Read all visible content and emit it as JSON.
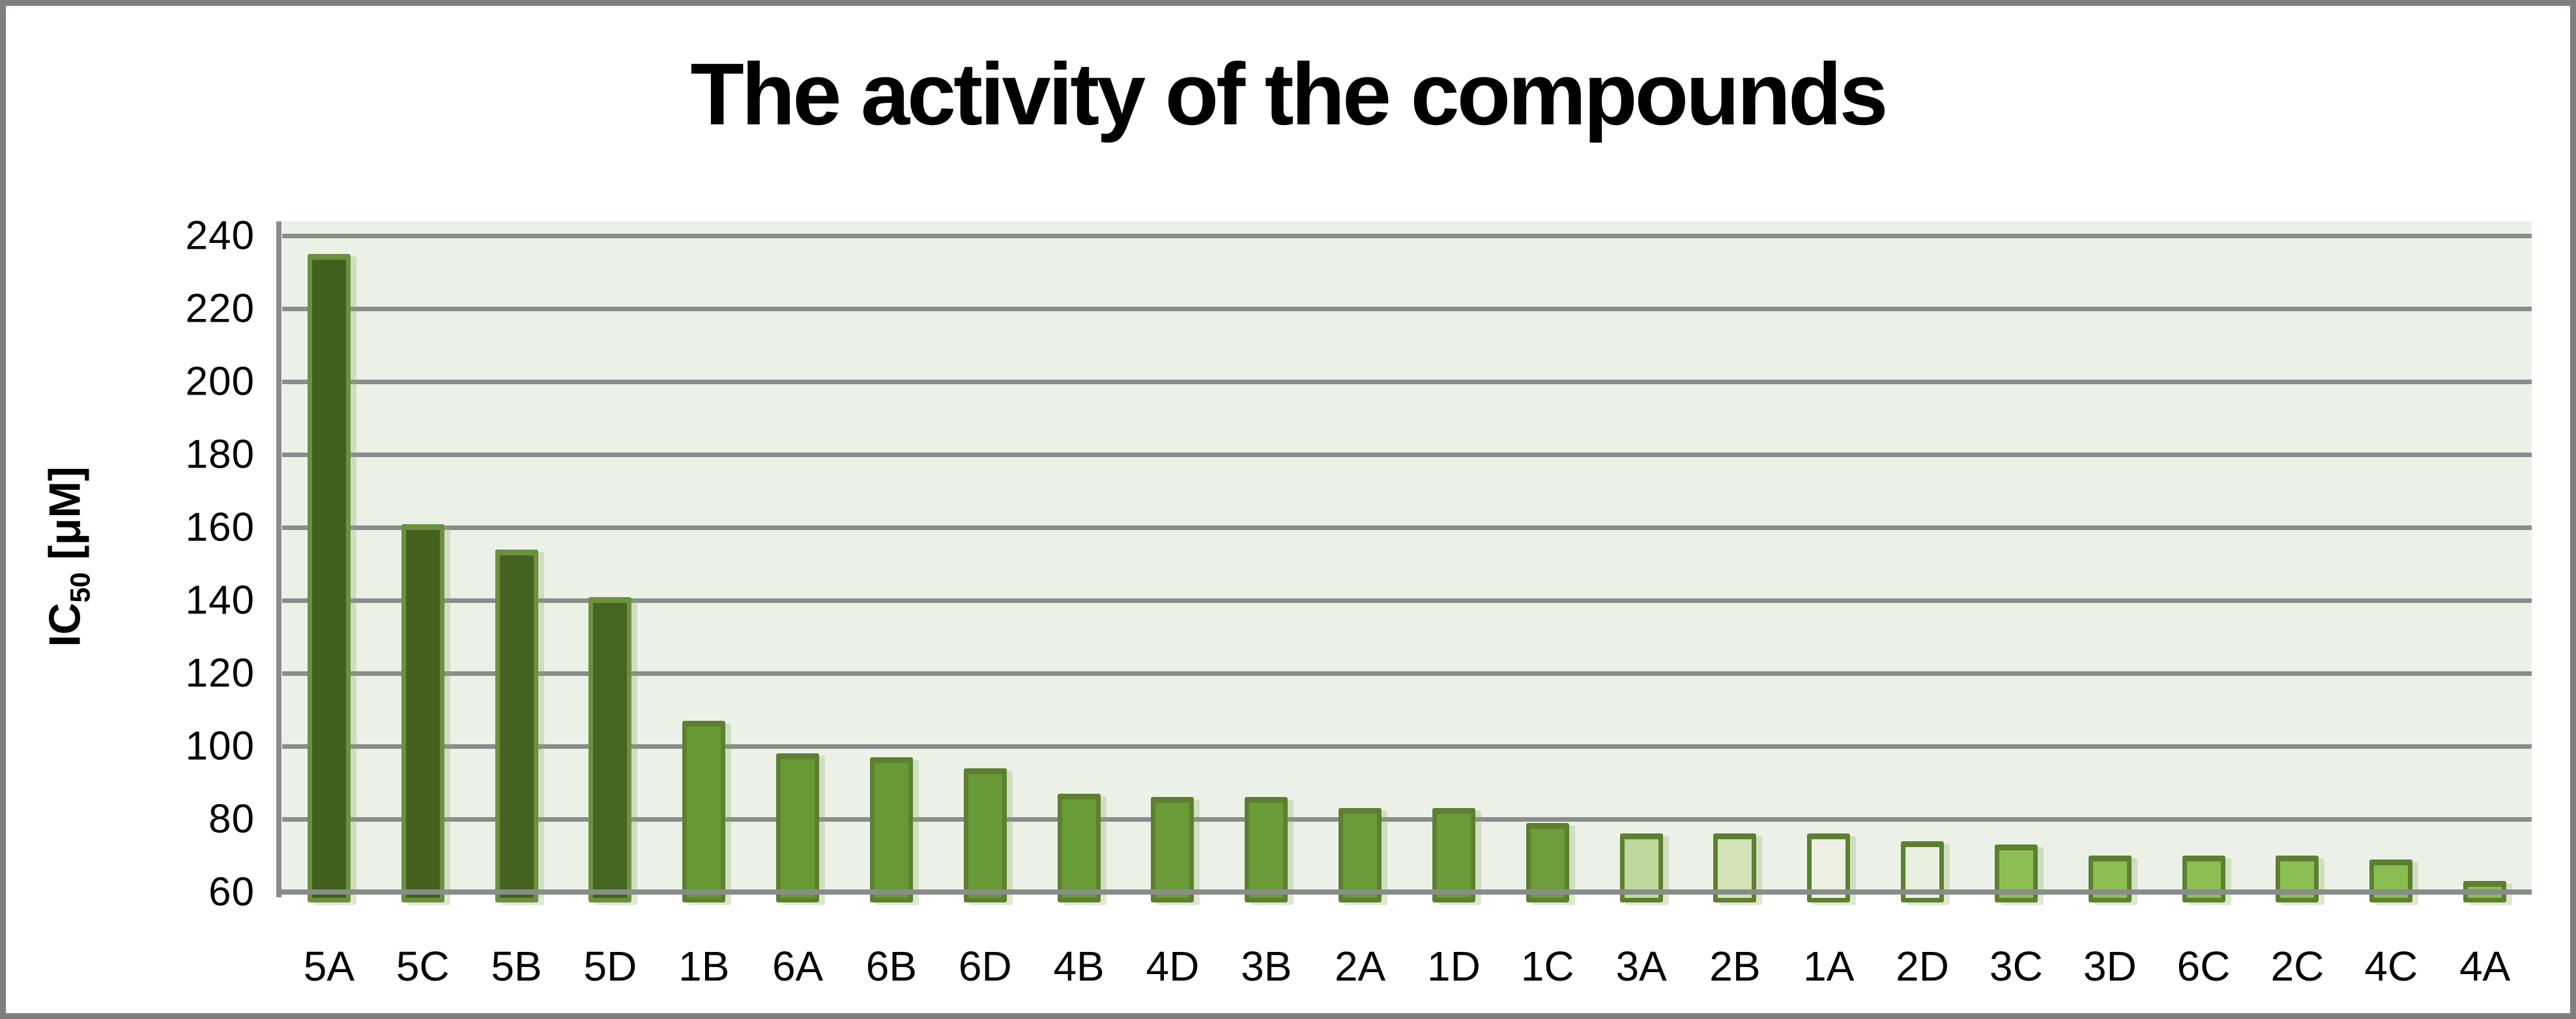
{
  "chart_data": {
    "type": "bar",
    "title": "The activity of the compounds",
    "ylabel": {
      "prefix": "IC",
      "sub": "50",
      "suffix": " [μM]"
    },
    "xlabel": "",
    "categories": [
      "5A",
      "5C",
      "5B",
      "5D",
      "1B",
      "6A",
      "6B",
      "6D",
      "4B",
      "4D",
      "3B",
      "2A",
      "1D",
      "1C",
      "3A",
      "2B",
      "1A",
      "2D",
      "3C",
      "3D",
      "6C",
      "2C",
      "4C",
      "4A"
    ],
    "values": [
      235,
      161,
      154,
      141,
      107,
      98,
      97,
      94,
      87,
      86,
      86,
      83,
      83,
      79,
      76,
      76,
      76,
      74,
      73,
      70,
      70,
      70,
      69,
      63
    ],
    "bar_fill_colors": [
      "#42601d",
      "#44621e",
      "#456320",
      "#466521",
      "#679935",
      "#689a36",
      "#689a36",
      "#699a37",
      "#699b37",
      "#6a9b38",
      "#6a9b38",
      "#699b38",
      "#699b38",
      "#6c9c3b",
      "#bfd89d",
      "#d3e4b9",
      "#ecf1e3",
      "#e9efde",
      "#8dbf55",
      "#8cbe53",
      "#8cbe53",
      "#8cbe53",
      "#8bbe52",
      "#8abd50"
    ],
    "bar_border_colors": [
      "#6b9140",
      "#6b9140",
      "#6b9140",
      "#6b9140",
      "#5d8030",
      "#5d8030",
      "#5d8030",
      "#5d8030",
      "#5d8030",
      "#5d8030",
      "#5d8030",
      "#5d8030",
      "#5d8030",
      "#5d8030",
      "#5d8030",
      "#5d8030",
      "#5d8030",
      "#5d8030",
      "#5d8030",
      "#5d8030",
      "#5d8030",
      "#5d8030",
      "#5d8030",
      "#5d8030"
    ],
    "yticks": [
      60,
      80,
      100,
      120,
      140,
      160,
      180,
      200,
      220,
      240
    ],
    "ylim": [
      60,
      244
    ],
    "grid": true,
    "legend": "none",
    "plot_background": "#ecf1e8",
    "gridline_color": "#898d8a",
    "axis_line_color": "#898d8a",
    "frame_color": "#7d807d",
    "title_color": "#000000"
  }
}
